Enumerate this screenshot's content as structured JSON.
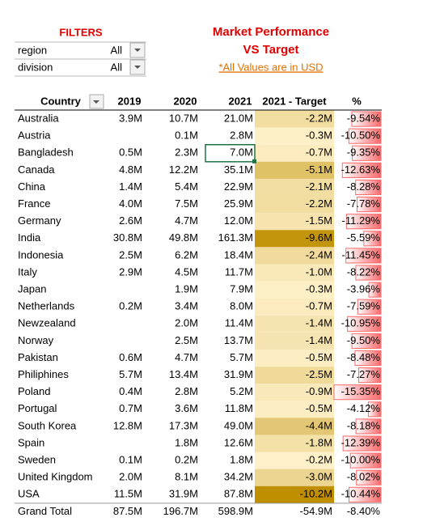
{
  "filters": {
    "title": "FILTERS",
    "items": [
      {
        "label": "region",
        "value": "All"
      },
      {
        "label": "division",
        "value": "All"
      }
    ]
  },
  "header": {
    "title_lines": [
      "Market Performance",
      "VS Target"
    ],
    "subtitle": "*All Values are in USD"
  },
  "table": {
    "columns": [
      "Country",
      "2019",
      "2020",
      "2021",
      "2021 - Target",
      "%"
    ],
    "rows": [
      [
        "Australia",
        "3.9M",
        "10.7M",
        "21.0M",
        "-2.2M",
        "-9.54%"
      ],
      [
        "Austria",
        null,
        "0.1M",
        "2.8M",
        "-0.3M",
        "-10.50%"
      ],
      [
        "Bangladesh",
        "0.5M",
        "2.3M",
        "7.0M",
        "-0.7M",
        "-9.35%"
      ],
      [
        "Canada",
        "4.8M",
        "12.2M",
        "35.1M",
        "-5.1M",
        "-12.63%"
      ],
      [
        "China",
        "1.4M",
        "5.4M",
        "22.9M",
        "-2.1M",
        "-8.28%"
      ],
      [
        "France",
        "4.0M",
        "7.5M",
        "25.9M",
        "-2.2M",
        "-7.78%"
      ],
      [
        "Germany",
        "2.6M",
        "4.7M",
        "12.0M",
        "-1.5M",
        "-11.29%"
      ],
      [
        "India",
        "30.8M",
        "49.8M",
        "161.3M",
        "-9.6M",
        "-5.59%"
      ],
      [
        "Indonesia",
        "2.5M",
        "6.2M",
        "18.4M",
        "-2.4M",
        "-11.45%"
      ],
      [
        "Italy",
        "2.9M",
        "4.5M",
        "11.7M",
        "-1.0M",
        "-8.22%"
      ],
      [
        "Japan",
        null,
        "1.9M",
        "7.9M",
        "-0.3M",
        "-3.96%"
      ],
      [
        "Netherlands",
        "0.2M",
        "3.4M",
        "8.0M",
        "-0.7M",
        "-7.59%"
      ],
      [
        "Newzealand",
        null,
        "2.0M",
        "11.4M",
        "-1.4M",
        "-10.95%"
      ],
      [
        "Norway",
        null,
        "2.5M",
        "13.7M",
        "-1.4M",
        "-9.50%"
      ],
      [
        "Pakistan",
        "0.6M",
        "4.7M",
        "5.7M",
        "-0.5M",
        "-8.48%"
      ],
      [
        "Philiphines",
        "5.7M",
        "13.4M",
        "31.9M",
        "-2.5M",
        "-7.27%"
      ],
      [
        "Poland",
        "0.4M",
        "2.8M",
        "5.2M",
        "-0.9M",
        "-15.35%"
      ],
      [
        "Portugal",
        "0.7M",
        "3.6M",
        "11.8M",
        "-0.5M",
        "-4.12%"
      ],
      [
        "South Korea",
        "12.8M",
        "17.3M",
        "49.0M",
        "-4.4M",
        "-8.18%"
      ],
      [
        "Spain",
        null,
        "1.8M",
        "12.6M",
        "-1.8M",
        "-12.39%"
      ],
      [
        "Sweden",
        "0.1M",
        "0.2M",
        "1.8M",
        "-0.2M",
        "-10.00%"
      ],
      [
        "United Kingdom",
        "2.0M",
        "8.1M",
        "34.2M",
        "-3.0M",
        "-8.02%"
      ],
      [
        "USA",
        "11.5M",
        "31.9M",
        "87.8M",
        "-10.2M",
        "-10.44%"
      ]
    ],
    "total": [
      "Grand Total",
      "87.5M",
      "196.7M",
      "598.9M",
      "-54.9M",
      "-8.40%"
    ]
  }
}
